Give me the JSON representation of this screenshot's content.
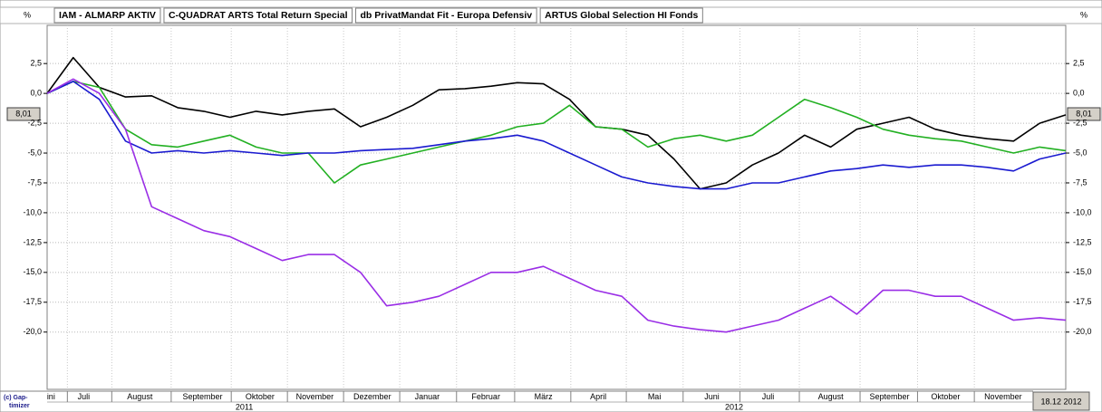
{
  "chart_data": {
    "type": "line",
    "unit_left": "%",
    "unit_right": "%",
    "marker_label": "8,01",
    "date_label": "18.12 2012",
    "credit": [
      "(c) Gap-",
      "timizer"
    ],
    "x": [
      0,
      2,
      4,
      6,
      8,
      10,
      12,
      14,
      16,
      18,
      20,
      22,
      24,
      26,
      28,
      30,
      32,
      34,
      36,
      38,
      40,
      42,
      44,
      46,
      48,
      50,
      52,
      54,
      56,
      58,
      60,
      62,
      64,
      66,
      68,
      70,
      72,
      74,
      76,
      78
    ],
    "xlim": [
      0,
      78
    ],
    "xticks": [
      {
        "value": 0.3,
        "label": "ini"
      },
      {
        "value": 2.8,
        "label": "Juli"
      },
      {
        "value": 7.1,
        "label": "August"
      },
      {
        "value": 11.9,
        "label": "September"
      },
      {
        "value": 16.3,
        "label": "Oktober"
      },
      {
        "value": 20.5,
        "label": "November"
      },
      {
        "value": 24.9,
        "label": "Dezember"
      },
      {
        "value": 29.1,
        "label": "Januar"
      },
      {
        "value": 33.6,
        "label": "Februar"
      },
      {
        "value": 38.0,
        "label": "März"
      },
      {
        "value": 42.2,
        "label": "April"
      },
      {
        "value": 46.5,
        "label": "Mai"
      },
      {
        "value": 50.9,
        "label": "Juni"
      },
      {
        "value": 55.2,
        "label": "Juli"
      },
      {
        "value": 60.0,
        "label": "August"
      },
      {
        "value": 64.5,
        "label": "September"
      },
      {
        "value": 68.8,
        "label": "Oktober"
      },
      {
        "value": 73.2,
        "label": "November"
      }
    ],
    "years": [
      {
        "value": 15.1,
        "label": "2011"
      },
      {
        "value": 52.6,
        "label": "2012"
      }
    ],
    "ylim": [
      -24.8,
      5.7
    ],
    "yticks": [
      {
        "value": 2.5,
        "label": "2,5"
      },
      {
        "value": 0,
        "label": "0,0"
      },
      {
        "value": -2.5,
        "label": "-2,5"
      },
      {
        "value": -5,
        "label": "-5,0"
      },
      {
        "value": -7.5,
        "label": "-7,5"
      },
      {
        "value": -10,
        "label": "-10,0"
      },
      {
        "value": -12.5,
        "label": "-12,5"
      },
      {
        "value": -15,
        "label": "-15,0"
      },
      {
        "value": -17.5,
        "label": "-17,5"
      },
      {
        "value": -20,
        "label": "-20,0"
      }
    ],
    "grid": true,
    "series": [
      {
        "name": "IAM - ALMARP AKTIV",
        "color": "#000000",
        "values": [
          0,
          3.0,
          0.5,
          -0.3,
          -0.2,
          -1.2,
          -1.5,
          -2.0,
          -1.5,
          -1.8,
          -1.5,
          -1.3,
          -2.8,
          -2.0,
          -1.0,
          0.3,
          0.4,
          0.6,
          0.9,
          0.8,
          -0.5,
          -2.8,
          -3.0,
          -3.5,
          -5.5,
          -8.0,
          -7.5,
          -6.0,
          -5.0,
          -3.5,
          -4.5,
          -3.0,
          -2.5,
          -2.0,
          -3.0,
          -3.5,
          -3.8,
          -4.0,
          -2.5,
          -1.8
        ]
      },
      {
        "name": "C-QUADRAT ARTS Total Return Special",
        "color": "#22b022",
        "values": [
          0,
          1.0,
          0.5,
          -3.0,
          -4.3,
          -4.5,
          -4.0,
          -3.5,
          -4.5,
          -5.0,
          -5.0,
          -7.5,
          -6.0,
          -5.5,
          -5.0,
          -4.5,
          -4.0,
          -3.5,
          -2.8,
          -2.5,
          -1.0,
          -2.8,
          -3.0,
          -4.5,
          -3.8,
          -3.5,
          -4.0,
          -3.5,
          -2.0,
          -0.5,
          -1.2,
          -2.0,
          -3.0,
          -3.5,
          -3.8,
          -4.0,
          -4.5,
          -5.0,
          -4.5,
          -4.8
        ]
      },
      {
        "name": "db PrivatMandat Fit - Europa Defensiv",
        "color": "#1a1ad0",
        "values": [
          0,
          1.0,
          -0.5,
          -4.0,
          -5.0,
          -4.8,
          -5.0,
          -4.8,
          -5.0,
          -5.2,
          -5.0,
          -5.0,
          -4.8,
          -4.7,
          -4.6,
          -4.3,
          -4.0,
          -3.8,
          -3.5,
          -4.0,
          -5.0,
          -6.0,
          -7.0,
          -7.5,
          -7.8,
          -8.0,
          -8.0,
          -7.5,
          -7.5,
          -7.0,
          -6.5,
          -6.3,
          -6.0,
          -6.2,
          -6.0,
          -6.0,
          -6.2,
          -6.5,
          -5.5,
          -5.0
        ]
      },
      {
        "name": "ARTUS Global Selection HI Fonds",
        "color": "#9a2ee6",
        "values": [
          0,
          1.2,
          0,
          -3.0,
          -9.5,
          -10.5,
          -11.5,
          -12.0,
          -13.0,
          -14.0,
          -13.5,
          -13.5,
          -15.0,
          -17.8,
          -17.5,
          -17.0,
          -16.0,
          -15.0,
          -15.0,
          -14.5,
          -15.5,
          -16.5,
          -17.0,
          -19.0,
          -19.5,
          -19.8,
          -20.0,
          -19.5,
          -19.0,
          -18.0,
          -17.0,
          -18.5,
          -16.5,
          -16.5,
          -17.0,
          -17.0,
          -18.0,
          -19.0,
          -18.8,
          -19.0
        ]
      }
    ]
  }
}
